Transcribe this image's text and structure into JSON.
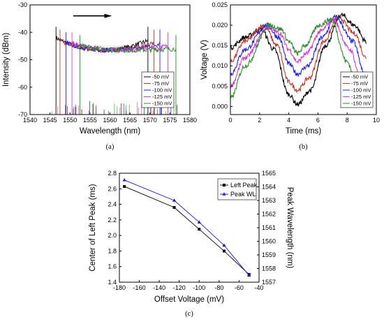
{
  "chart_data": [
    {
      "type": "line",
      "caption": "(a)",
      "xlabel": "Wavelength (nm)",
      "ylabel": "Intensity (dBm)",
      "xlim": [
        1540,
        1580
      ],
      "ylim": [
        -70,
        -30
      ],
      "xticks": [
        1540,
        1545,
        1550,
        1555,
        1560,
        1565,
        1570,
        1575,
        1580
      ],
      "yticks": [
        -70,
        -60,
        -50,
        -40,
        -30
      ],
      "legend_position": "bottom-right",
      "annotation": "arrow pointing right (increasing wavelength)",
      "series": [
        {
          "name": "-50 mV",
          "color": "#000000",
          "left_edge": 1546.5,
          "right_edge": 1569.5,
          "plateau_left": -42,
          "plateau_min": -46.5,
          "plateau_right": -43
        },
        {
          "name": "-75 mV",
          "color": "#c0392b",
          "left_edge": 1547.5,
          "right_edge": 1571.0,
          "plateau_left": -43,
          "plateau_min": -46.5,
          "plateau_right": -44
        },
        {
          "name": "-100 mV",
          "color": "#2020e0",
          "left_edge": 1549.0,
          "right_edge": 1572.5,
          "plateau_left": -44,
          "plateau_min": -46.5,
          "plateau_right": -44
        },
        {
          "name": "-125 mV",
          "color": "#d040d0",
          "left_edge": 1550.5,
          "right_edge": 1574.5,
          "plateau_left": -44,
          "plateau_min": -46.5,
          "plateau_right": -45
        },
        {
          "name": "-150 mV",
          "color": "#2e8b2e",
          "left_edge": 1552.5,
          "right_edge": 1576.5,
          "plateau_left": -45,
          "plateau_min": -46.5,
          "plateau_right": -46
        }
      ]
    },
    {
      "type": "line",
      "caption": "(b)",
      "xlabel": "Time (ms)",
      "ylabel": "Voltage (V)",
      "xlim": [
        0,
        10
      ],
      "ylim": [
        -0.002,
        0.025
      ],
      "xticks": [
        0,
        2,
        4,
        6,
        8,
        10
      ],
      "yticks": [
        0.0,
        0.005,
        0.01,
        0.015,
        0.02,
        0.025
      ],
      "ytick_labels": [
        "0.000",
        "0.005",
        "0.010",
        "0.015",
        "0.020",
        "0.025"
      ],
      "legend_position": "right",
      "series": [
        {
          "name": "-50 mV",
          "color": "#000000",
          "x": [
            0.0,
            1.0,
            2.1,
            3.0,
            4.0,
            4.6,
            5.5,
            6.5,
            7.6,
            8.5,
            9.3
          ],
          "y": [
            0.0145,
            0.017,
            0.019,
            0.014,
            0.003,
            0.0005,
            0.004,
            0.015,
            0.0225,
            0.02,
            0.016
          ]
        },
        {
          "name": "-75 mV",
          "color": "#c0392b",
          "x": [
            0.0,
            1.0,
            2.3,
            3.2,
            4.0,
            4.6,
            5.4,
            6.4,
            7.4,
            8.5,
            9.3
          ],
          "y": [
            0.011,
            0.016,
            0.02,
            0.015,
            0.006,
            0.004,
            0.007,
            0.016,
            0.022,
            0.018,
            0.012
          ]
        },
        {
          "name": "-100 mV",
          "color": "#2020e0",
          "x": [
            0.0,
            1.0,
            2.5,
            3.3,
            4.0,
            4.6,
            5.3,
            6.3,
            7.2,
            8.4,
            9.2
          ],
          "y": [
            0.008,
            0.014,
            0.02,
            0.017,
            0.0105,
            0.008,
            0.01,
            0.017,
            0.022,
            0.016,
            0.008
          ]
        },
        {
          "name": "-125 mV",
          "color": "#d040d0",
          "x": [
            0.0,
            1.0,
            2.6,
            3.4,
            4.0,
            4.6,
            5.2,
            6.2,
            7.0,
            8.2,
            9.0
          ],
          "y": [
            0.005,
            0.012,
            0.0195,
            0.018,
            0.014,
            0.011,
            0.013,
            0.0185,
            0.0215,
            0.014,
            0.006
          ]
        },
        {
          "name": "-150 mV",
          "color": "#2e8b2e",
          "x": [
            0.0,
            1.0,
            2.7,
            3.5,
            4.0,
            4.6,
            5.1,
            6.1,
            6.9,
            8.0,
            8.8
          ],
          "y": [
            0.002,
            0.01,
            0.02,
            0.019,
            0.016,
            0.013,
            0.015,
            0.02,
            0.0215,
            0.011,
            0.003
          ]
        }
      ]
    },
    {
      "type": "line",
      "caption": "(c)",
      "xlabel": "Offset Voltage (mV)",
      "ylabel": "Center of Left Peak (ms)",
      "ylabel_right": "Peak Wavelength (nm)",
      "xlim": [
        -180,
        -40
      ],
      "ylim": [
        1.4,
        2.8
      ],
      "ylim_right": [
        1557,
        1565
      ],
      "xticks": [
        -180,
        -160,
        -140,
        -120,
        -100,
        -80,
        -60,
        -40
      ],
      "yticks": [
        1.4,
        1.6,
        1.8,
        2.0,
        2.2,
        2.4,
        2.6,
        2.8
      ],
      "ytick_labels": [
        "1.4",
        "1.6",
        "1.8",
        "2.0",
        "2.2",
        "2.4",
        "2.6",
        "2.8"
      ],
      "yticks_right": [
        1557,
        1558,
        1559,
        1560,
        1561,
        1562,
        1563,
        1564,
        1565
      ],
      "legend_position": "top-right",
      "series": [
        {
          "name": "Left Peak",
          "color": "#000000",
          "marker": "square",
          "axis": "left",
          "x": [
            -175,
            -125,
            -100,
            -75,
            -50
          ],
          "y": [
            2.63,
            2.36,
            2.08,
            1.8,
            1.5
          ]
        },
        {
          "name": "Peak WL",
          "color": "#1a1acc",
          "marker": "triangle",
          "axis": "right",
          "x": [
            -175,
            -125,
            -100,
            -75,
            -50
          ],
          "y": [
            1564.5,
            1563.0,
            1561.4,
            1559.7,
            1557.5
          ]
        }
      ]
    }
  ]
}
